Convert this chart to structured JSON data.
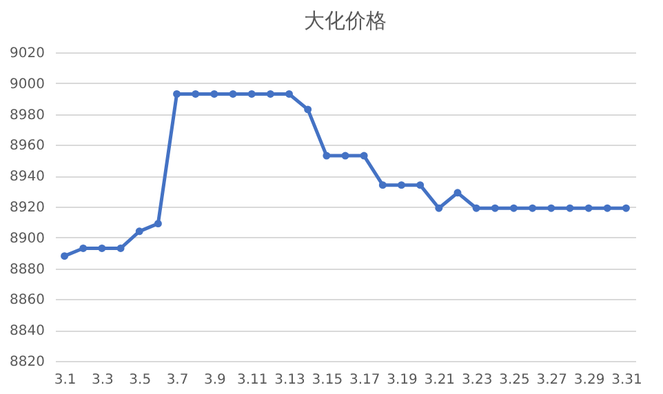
{
  "chart_data": {
    "type": "line",
    "title": "大化价格",
    "categories": [
      "3.1",
      null,
      "3.3",
      null,
      "3.5",
      null,
      "3.7",
      null,
      "3.9",
      null,
      "3.11",
      null,
      "3.13",
      null,
      "3.15",
      null,
      "3.17",
      null,
      "3.19",
      null,
      "3.21",
      null,
      "3.23",
      null,
      "3.25",
      null,
      "3.27",
      null,
      "3.29",
      null,
      "3.31"
    ],
    "series": [
      {
        "color": "#4472c4",
        "values": [
          8888,
          8893,
          8893,
          8893,
          8904,
          8909,
          8993,
          8993,
          8993,
          8993,
          8993,
          8993,
          8993,
          8983,
          8953,
          8953,
          8953,
          8934,
          8934,
          8934,
          8919,
          8929,
          8919,
          8919,
          8919,
          8919,
          8919,
          8919,
          8919,
          8919,
          8919
        ]
      }
    ],
    "ylim": [
      8820,
      9020
    ],
    "yticks": [
      8820,
      8840,
      8860,
      8880,
      8900,
      8920,
      8940,
      8960,
      8980,
      9000,
      9020
    ],
    "grid": "y",
    "marker": "circle",
    "line_style": "solid",
    "legend": false
  }
}
